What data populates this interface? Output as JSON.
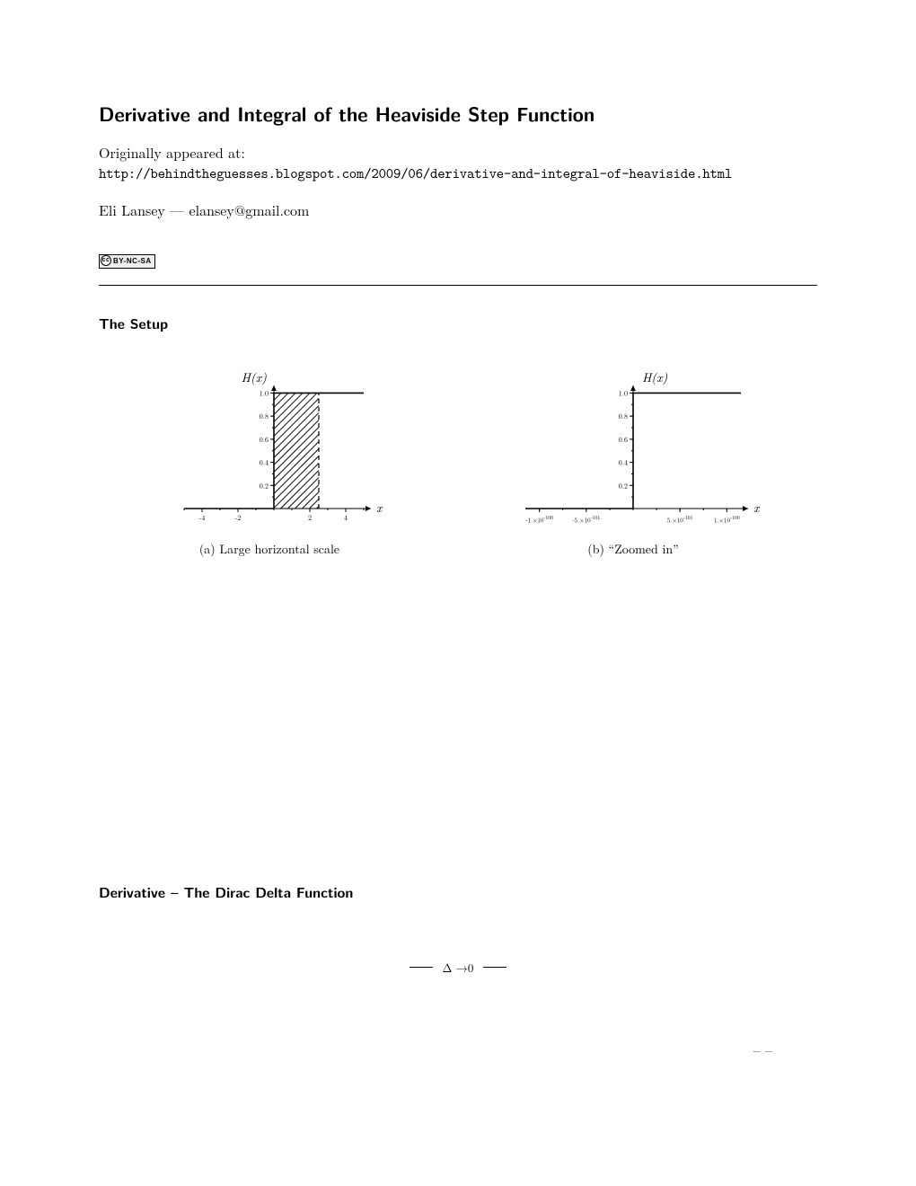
{
  "title": "Derivative and Integral of the Heaviside Step Function",
  "origin_label": "Originally appeared at:",
  "url": "http://behindtheguesses.blogspot.com/2009/06/derivative-and-integral-of-heaviside.html",
  "author": "Eli Lansey — elansey@gmail.com",
  "cc_text": "BY-NC-SA",
  "section1_title": "The Setup",
  "section2_title": "Derivative – The Dirac Delta Function",
  "figA": {
    "ylabel": "H(x)",
    "xlabel": "x",
    "caption": "(a)  Large horizontal scale",
    "xticks": [
      "-4",
      "-2",
      "2",
      "4"
    ],
    "yticks": [
      "0.2",
      "0.4",
      "0.6",
      "0.8",
      "1.0"
    ],
    "xrange": [
      -5,
      5
    ],
    "yrange": [
      0,
      1.05
    ],
    "step_at": 0,
    "hatched": true,
    "hatched_region": [
      0,
      2.5
    ],
    "dashed_x": 2.5,
    "colors": {
      "axis": "#000000",
      "hatch": "#000000",
      "line": "#000000",
      "dashed": "#000000"
    }
  },
  "figB": {
    "ylabel": "H(x)",
    "xlabel": "x",
    "caption": "(b)  “Zoomed in”",
    "xticks_html": [
      "-1.×10<sup>-100</sup>",
      "-5.×10<sup>-101</sup>",
      "5.×10<sup>-101</sup>",
      "1.×10<sup>-100</sup>"
    ],
    "xtick_pos": [
      -1,
      -0.5,
      0.5,
      1
    ],
    "yticks": [
      "0.2",
      "0.4",
      "0.6",
      "0.8",
      "1.0"
    ],
    "xrange": [
      -1.15,
      1.15
    ],
    "yrange": [
      0,
      1.05
    ],
    "step_at": 0,
    "hatched": false,
    "colors": {
      "axis": "#000000",
      "line": "#000000"
    }
  },
  "eq": {
    "sub": "Δ →0"
  },
  "lower_marks": "–    –"
}
